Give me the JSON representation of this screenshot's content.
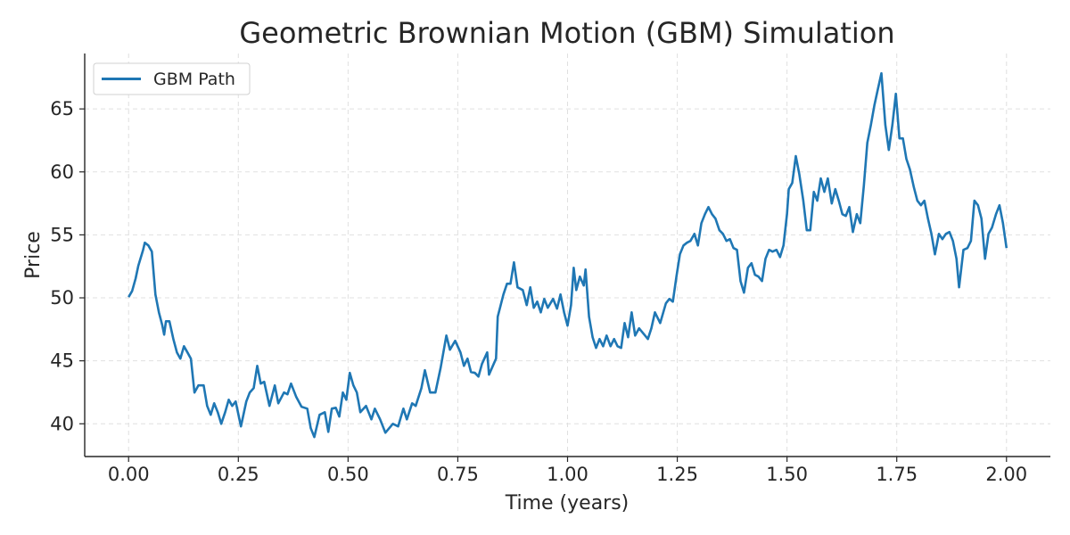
{
  "chart_data": {
    "type": "line",
    "title": "Geometric Brownian Motion (GBM) Simulation",
    "xlabel": "Time (years)",
    "ylabel": "Price",
    "xlim": [
      -0.1,
      2.1
    ],
    "ylim": [
      37.4,
      69.4
    ],
    "xticks": [
      0.0,
      0.25,
      0.5,
      0.75,
      1.0,
      1.25,
      1.5,
      1.75,
      2.0
    ],
    "xtick_labels": [
      "0.00",
      "0.25",
      "0.50",
      "0.75",
      "1.00",
      "1.25",
      "1.50",
      "1.75",
      "2.00"
    ],
    "yticks": [
      40,
      45,
      50,
      55,
      60,
      65
    ],
    "ytick_labels": [
      "40",
      "45",
      "50",
      "55",
      "60",
      "65"
    ],
    "grid": true,
    "legend_position": "top-left",
    "colors": {
      "line": "#1f77b4",
      "grid": "#e0e0e0",
      "axis": "#262626"
    },
    "series": [
      {
        "name": "GBM Path",
        "points": [
          [
            0.0,
            50.06
          ],
          [
            0.008,
            50.55
          ],
          [
            0.016,
            51.54
          ],
          [
            0.022,
            52.54
          ],
          [
            0.033,
            53.81
          ],
          [
            0.037,
            54.38
          ],
          [
            0.045,
            54.16
          ],
          [
            0.053,
            53.67
          ],
          [
            0.061,
            50.27
          ],
          [
            0.069,
            48.85
          ],
          [
            0.077,
            47.79
          ],
          [
            0.081,
            47.08
          ],
          [
            0.085,
            48.14
          ],
          [
            0.093,
            48.14
          ],
          [
            0.102,
            46.73
          ],
          [
            0.11,
            45.67
          ],
          [
            0.118,
            45.17
          ],
          [
            0.126,
            46.16
          ],
          [
            0.134,
            45.67
          ],
          [
            0.142,
            45.17
          ],
          [
            0.15,
            42.48
          ],
          [
            0.159,
            43.05
          ],
          [
            0.171,
            43.05
          ],
          [
            0.179,
            41.42
          ],
          [
            0.187,
            40.71
          ],
          [
            0.195,
            41.63
          ],
          [
            0.203,
            40.92
          ],
          [
            0.211,
            40.0
          ],
          [
            0.22,
            40.92
          ],
          [
            0.228,
            41.91
          ],
          [
            0.236,
            41.42
          ],
          [
            0.244,
            41.77
          ],
          [
            0.256,
            39.79
          ],
          [
            0.268,
            41.77
          ],
          [
            0.276,
            42.48
          ],
          [
            0.285,
            42.83
          ],
          [
            0.293,
            44.6
          ],
          [
            0.301,
            43.19
          ],
          [
            0.309,
            43.33
          ],
          [
            0.321,
            41.42
          ],
          [
            0.333,
            43.05
          ],
          [
            0.341,
            41.63
          ],
          [
            0.354,
            42.48
          ],
          [
            0.362,
            42.34
          ],
          [
            0.37,
            43.19
          ],
          [
            0.382,
            42.12
          ],
          [
            0.394,
            41.35
          ],
          [
            0.407,
            41.2
          ],
          [
            0.415,
            39.65
          ],
          [
            0.423,
            38.94
          ],
          [
            0.435,
            40.71
          ],
          [
            0.447,
            40.92
          ],
          [
            0.455,
            39.36
          ],
          [
            0.463,
            41.2
          ],
          [
            0.472,
            41.27
          ],
          [
            0.48,
            40.57
          ],
          [
            0.488,
            42.48
          ],
          [
            0.496,
            41.91
          ],
          [
            0.504,
            44.04
          ],
          [
            0.512,
            43.05
          ],
          [
            0.52,
            42.48
          ],
          [
            0.528,
            40.92
          ],
          [
            0.541,
            41.42
          ],
          [
            0.553,
            40.35
          ],
          [
            0.561,
            41.2
          ],
          [
            0.573,
            40.35
          ],
          [
            0.585,
            39.29
          ],
          [
            0.602,
            40.0
          ],
          [
            0.614,
            39.79
          ],
          [
            0.626,
            41.2
          ],
          [
            0.634,
            40.35
          ],
          [
            0.646,
            41.63
          ],
          [
            0.654,
            41.42
          ],
          [
            0.667,
            42.83
          ],
          [
            0.675,
            44.25
          ],
          [
            0.687,
            42.48
          ],
          [
            0.699,
            42.48
          ],
          [
            0.711,
            44.46
          ],
          [
            0.724,
            47.01
          ],
          [
            0.732,
            45.88
          ],
          [
            0.744,
            46.59
          ],
          [
            0.756,
            45.67
          ],
          [
            0.764,
            44.6
          ],
          [
            0.772,
            45.17
          ],
          [
            0.78,
            44.11
          ],
          [
            0.789,
            44.04
          ],
          [
            0.797,
            43.75
          ],
          [
            0.805,
            44.75
          ],
          [
            0.817,
            45.67
          ],
          [
            0.821,
            43.9
          ],
          [
            0.837,
            45.17
          ],
          [
            0.841,
            48.5
          ],
          [
            0.854,
            50.27
          ],
          [
            0.862,
            51.12
          ],
          [
            0.87,
            51.12
          ],
          [
            0.878,
            52.82
          ],
          [
            0.886,
            50.84
          ],
          [
            0.898,
            50.62
          ],
          [
            0.907,
            49.42
          ],
          [
            0.915,
            50.84
          ],
          [
            0.923,
            49.21
          ],
          [
            0.931,
            49.7
          ],
          [
            0.939,
            48.85
          ],
          [
            0.947,
            49.92
          ],
          [
            0.955,
            49.21
          ],
          [
            0.967,
            49.92
          ],
          [
            0.976,
            49.14
          ],
          [
            0.984,
            50.27
          ],
          [
            0.992,
            48.85
          ],
          [
            1.0,
            47.79
          ],
          [
            1.008,
            49.42
          ],
          [
            1.014,
            52.39
          ],
          [
            1.02,
            50.62
          ],
          [
            1.028,
            51.69
          ],
          [
            1.037,
            50.98
          ],
          [
            1.041,
            52.25
          ],
          [
            1.049,
            48.5
          ],
          [
            1.057,
            46.87
          ],
          [
            1.065,
            46.02
          ],
          [
            1.073,
            46.73
          ],
          [
            1.081,
            46.16
          ],
          [
            1.089,
            47.01
          ],
          [
            1.098,
            46.16
          ],
          [
            1.106,
            46.73
          ],
          [
            1.114,
            46.16
          ],
          [
            1.122,
            46.02
          ],
          [
            1.13,
            48.0
          ],
          [
            1.138,
            46.87
          ],
          [
            1.146,
            48.85
          ],
          [
            1.154,
            47.01
          ],
          [
            1.163,
            47.58
          ],
          [
            1.175,
            47.08
          ],
          [
            1.183,
            46.73
          ],
          [
            1.191,
            47.58
          ],
          [
            1.199,
            48.85
          ],
          [
            1.211,
            48.0
          ],
          [
            1.224,
            49.56
          ],
          [
            1.232,
            49.92
          ],
          [
            1.24,
            49.7
          ],
          [
            1.248,
            51.69
          ],
          [
            1.256,
            53.46
          ],
          [
            1.264,
            54.16
          ],
          [
            1.272,
            54.38
          ],
          [
            1.28,
            54.52
          ],
          [
            1.289,
            55.08
          ],
          [
            1.297,
            54.16
          ],
          [
            1.305,
            55.93
          ],
          [
            1.313,
            56.64
          ],
          [
            1.321,
            57.21
          ],
          [
            1.329,
            56.64
          ],
          [
            1.337,
            56.29
          ],
          [
            1.346,
            55.37
          ],
          [
            1.354,
            55.08
          ],
          [
            1.362,
            54.52
          ],
          [
            1.37,
            54.66
          ],
          [
            1.378,
            53.95
          ],
          [
            1.386,
            53.81
          ],
          [
            1.394,
            51.33
          ],
          [
            1.402,
            50.41
          ],
          [
            1.411,
            52.39
          ],
          [
            1.419,
            52.75
          ],
          [
            1.427,
            51.83
          ],
          [
            1.435,
            51.69
          ],
          [
            1.443,
            51.33
          ],
          [
            1.451,
            53.1
          ],
          [
            1.459,
            53.81
          ],
          [
            1.467,
            53.67
          ],
          [
            1.476,
            53.81
          ],
          [
            1.484,
            53.24
          ],
          [
            1.492,
            54.16
          ],
          [
            1.5,
            56.64
          ],
          [
            1.504,
            58.63
          ],
          [
            1.512,
            59.12
          ],
          [
            1.52,
            61.25
          ],
          [
            1.528,
            59.83
          ],
          [
            1.537,
            57.71
          ],
          [
            1.545,
            55.37
          ],
          [
            1.553,
            55.37
          ],
          [
            1.561,
            58.41
          ],
          [
            1.569,
            57.71
          ],
          [
            1.577,
            59.48
          ],
          [
            1.585,
            58.41
          ],
          [
            1.593,
            59.48
          ],
          [
            1.602,
            57.49
          ],
          [
            1.61,
            58.63
          ],
          [
            1.618,
            57.71
          ],
          [
            1.626,
            56.64
          ],
          [
            1.634,
            56.5
          ],
          [
            1.642,
            57.21
          ],
          [
            1.65,
            55.23
          ],
          [
            1.659,
            56.64
          ],
          [
            1.667,
            55.93
          ],
          [
            1.675,
            58.91
          ],
          [
            1.683,
            62.31
          ],
          [
            1.691,
            63.73
          ],
          [
            1.699,
            65.28
          ],
          [
            1.707,
            66.56
          ],
          [
            1.715,
            67.83
          ],
          [
            1.724,
            63.73
          ],
          [
            1.732,
            61.74
          ],
          [
            1.74,
            63.73
          ],
          [
            1.748,
            66.2
          ],
          [
            1.756,
            62.66
          ],
          [
            1.764,
            62.66
          ],
          [
            1.772,
            61.03
          ],
          [
            1.78,
            60.18
          ],
          [
            1.789,
            58.77
          ],
          [
            1.797,
            57.71
          ],
          [
            1.805,
            57.35
          ],
          [
            1.813,
            57.71
          ],
          [
            1.821,
            56.29
          ],
          [
            1.829,
            55.08
          ],
          [
            1.837,
            53.46
          ],
          [
            1.846,
            55.08
          ],
          [
            1.854,
            54.66
          ],
          [
            1.862,
            55.08
          ],
          [
            1.87,
            55.23
          ],
          [
            1.878,
            54.52
          ],
          [
            1.886,
            53.1
          ],
          [
            1.892,
            50.84
          ],
          [
            1.902,
            53.81
          ],
          [
            1.911,
            53.95
          ],
          [
            1.919,
            54.52
          ],
          [
            1.927,
            57.71
          ],
          [
            1.935,
            57.35
          ],
          [
            1.943,
            56.29
          ],
          [
            1.951,
            53.1
          ],
          [
            1.959,
            55.08
          ],
          [
            1.967,
            55.58
          ],
          [
            1.976,
            56.64
          ],
          [
            1.984,
            57.35
          ],
          [
            1.992,
            55.93
          ],
          [
            2.0,
            53.95
          ]
        ]
      }
    ]
  }
}
